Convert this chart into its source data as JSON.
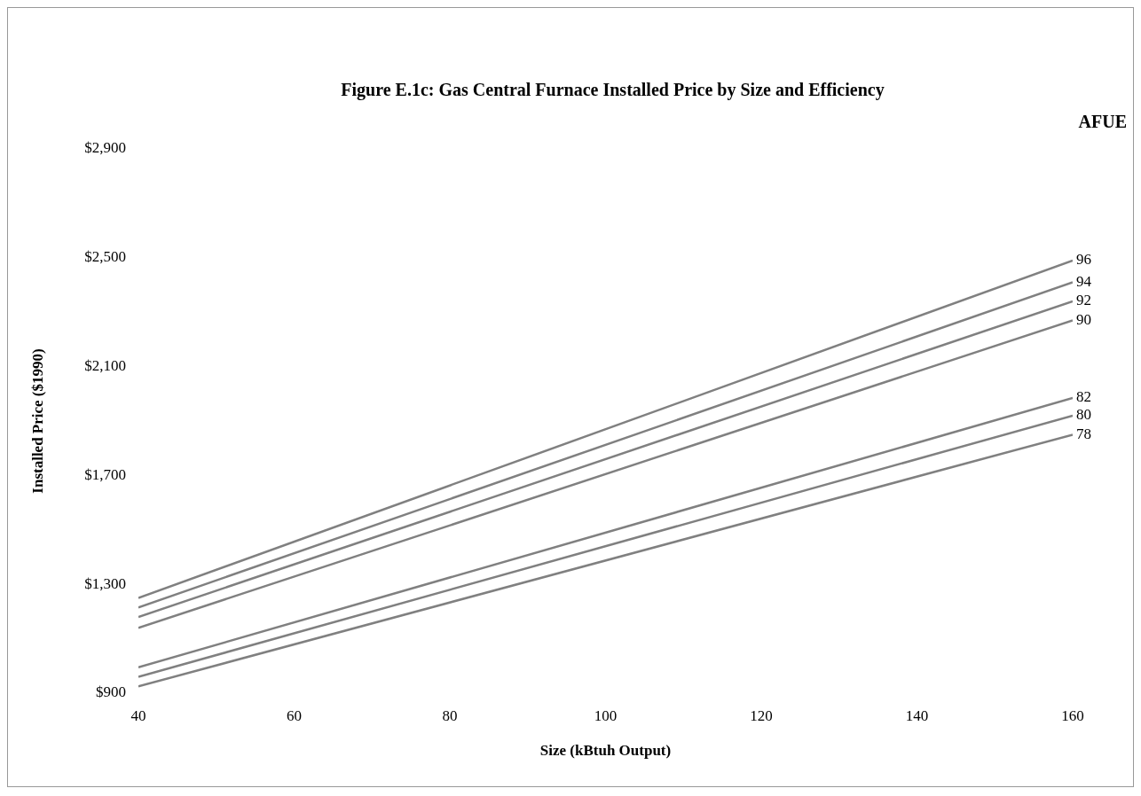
{
  "chart_data": {
    "type": "line",
    "title": "Figure E.1c: Gas Central Furnace Installed Price by Size and Efficiency",
    "xlabel": "Size (kBtuh Output)",
    "ylabel": "Installed Price ($1990)",
    "legend_title": "AFUE",
    "x": [
      40,
      160
    ],
    "xlim": [
      40,
      160
    ],
    "xticks": [
      40,
      60,
      80,
      100,
      120,
      140,
      160
    ],
    "ylim": [
      900,
      2900
    ],
    "yticks": [
      {
        "value": 900,
        "label": "$900"
      },
      {
        "value": 1300,
        "label": "$1,300"
      },
      {
        "value": 1700,
        "label": "$1,700"
      },
      {
        "value": 2100,
        "label": "$2,100"
      },
      {
        "value": 2500,
        "label": "$2,500"
      },
      {
        "value": 2900,
        "label": "$2,900"
      }
    ],
    "grid": false,
    "marker": "none",
    "line_style": "solid",
    "series": [
      {
        "name": "96",
        "color": "#808080",
        "values": [
          1250,
          2490
        ]
      },
      {
        "name": "94",
        "color": "#808080",
        "values": [
          1215,
          2410
        ]
      },
      {
        "name": "92",
        "color": "#808080",
        "values": [
          1180,
          2340
        ]
      },
      {
        "name": "90",
        "color": "#808080",
        "values": [
          1140,
          2270
        ]
      },
      {
        "name": "82",
        "color": "#808080",
        "values": [
          995,
          1985
        ]
      },
      {
        "name": "80",
        "color": "#808080",
        "values": [
          960,
          1920
        ]
      },
      {
        "name": "78",
        "color": "#808080",
        "values": [
          925,
          1850
        ]
      }
    ]
  }
}
